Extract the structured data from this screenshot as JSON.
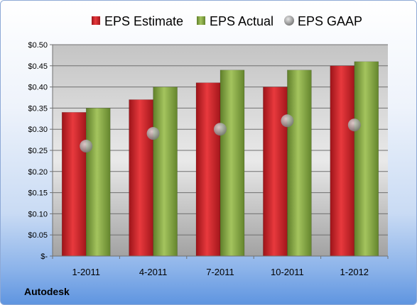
{
  "chart_data": {
    "type": "bar",
    "categories": [
      "1-2011",
      "4-2011",
      "7-2011",
      "10-2011",
      "1-2012"
    ],
    "series": [
      {
        "name": "EPS Estimate",
        "kind": "bar",
        "color": "#d42a2f",
        "values": [
          0.34,
          0.37,
          0.41,
          0.4,
          0.45
        ]
      },
      {
        "name": "EPS Actual",
        "kind": "bar",
        "color": "#8cb04a",
        "values": [
          0.35,
          0.4,
          0.44,
          0.44,
          0.46
        ]
      },
      {
        "name": "EPS GAAP",
        "kind": "marker",
        "color": "#a9a9a9",
        "values": [
          0.26,
          0.29,
          0.3,
          0.32,
          0.31
        ]
      }
    ],
    "ylim": [
      0,
      0.5
    ],
    "yticks": [
      0,
      0.05,
      0.1,
      0.15,
      0.2,
      0.25,
      0.3,
      0.35,
      0.4,
      0.45,
      0.5
    ],
    "ytick_labels": [
      "$-",
      "$0.05",
      "$0.10",
      "$0.15",
      "$0.20",
      "$0.25",
      "$0.30",
      "$0.35",
      "$0.40",
      "$0.45",
      "$0.50"
    ],
    "grid": true,
    "legend_position": "top"
  },
  "footer": {
    "company": "Autodesk"
  }
}
